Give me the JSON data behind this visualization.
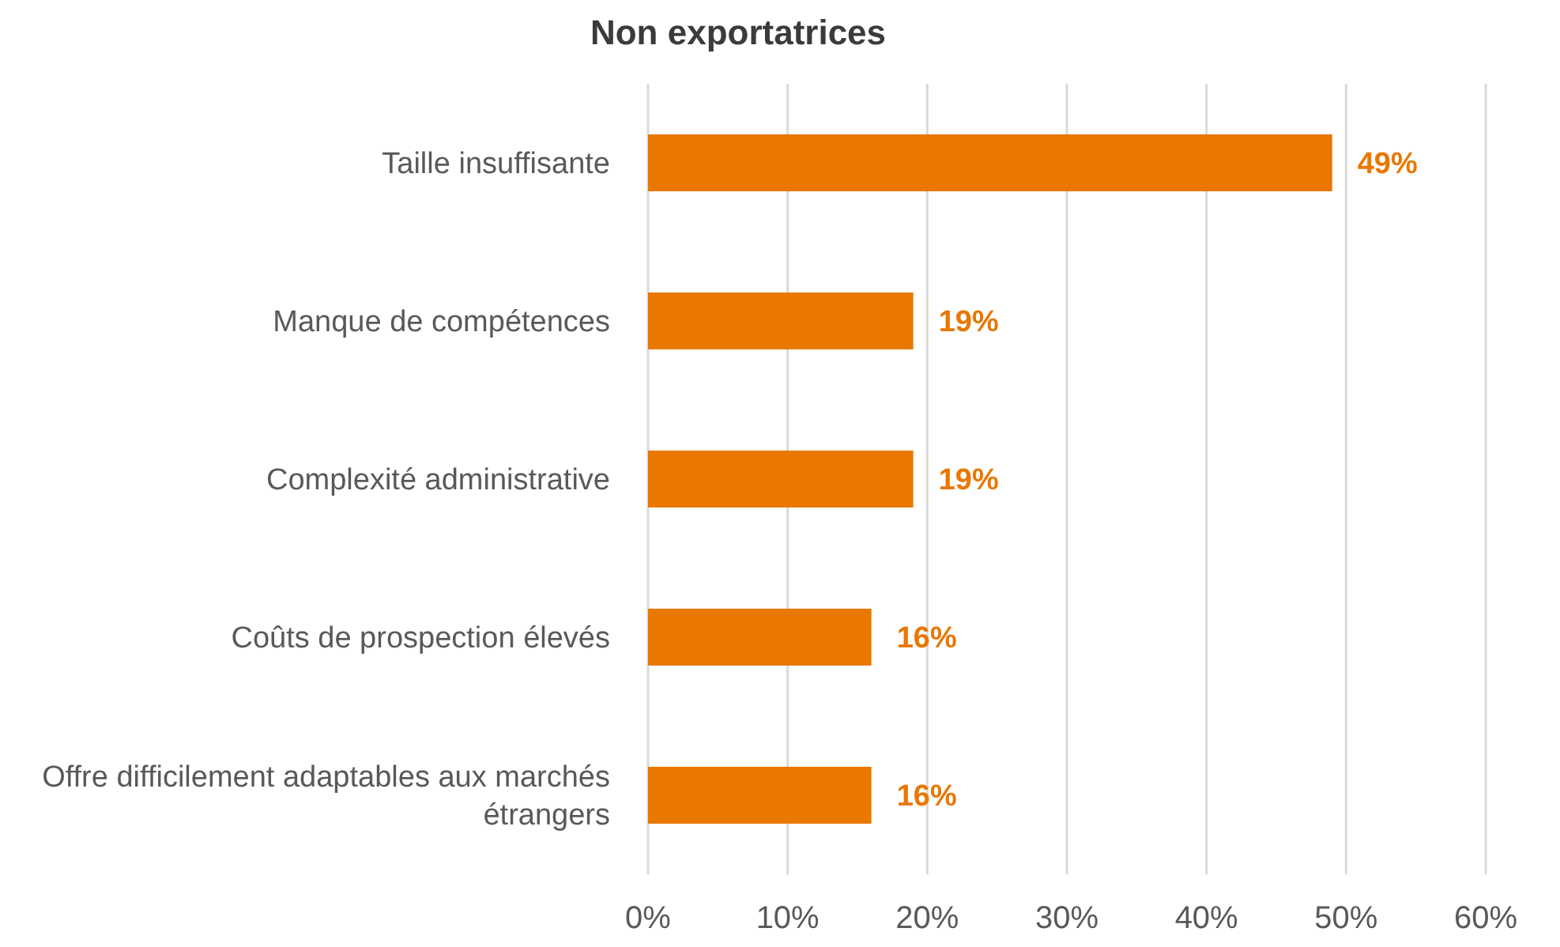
{
  "chart_data": {
    "type": "bar",
    "orientation": "horizontal",
    "title": "Non exportatrices",
    "categories": [
      "Taille insuffisante",
      "Manque de compétences",
      "Complexité administrative",
      "Coûts de prospection élevés",
      "Offre difficilement adaptables aux marchés étrangers"
    ],
    "values": [
      49,
      19,
      19,
      16,
      16
    ],
    "value_labels": [
      "49%",
      "19%",
      "19%",
      "16%",
      "16%"
    ],
    "color": "#e97700",
    "xlim": [
      0,
      60
    ],
    "xticks": [
      {
        "value": 0,
        "label": "0%"
      },
      {
        "value": 10,
        "label": "10%"
      },
      {
        "value": 20,
        "label": "20%"
      },
      {
        "value": 30,
        "label": "30%"
      },
      {
        "value": 40,
        "label": "40%"
      },
      {
        "value": 50,
        "label": "50%"
      },
      {
        "value": 60,
        "label": "60%"
      }
    ],
    "grid": "x"
  }
}
